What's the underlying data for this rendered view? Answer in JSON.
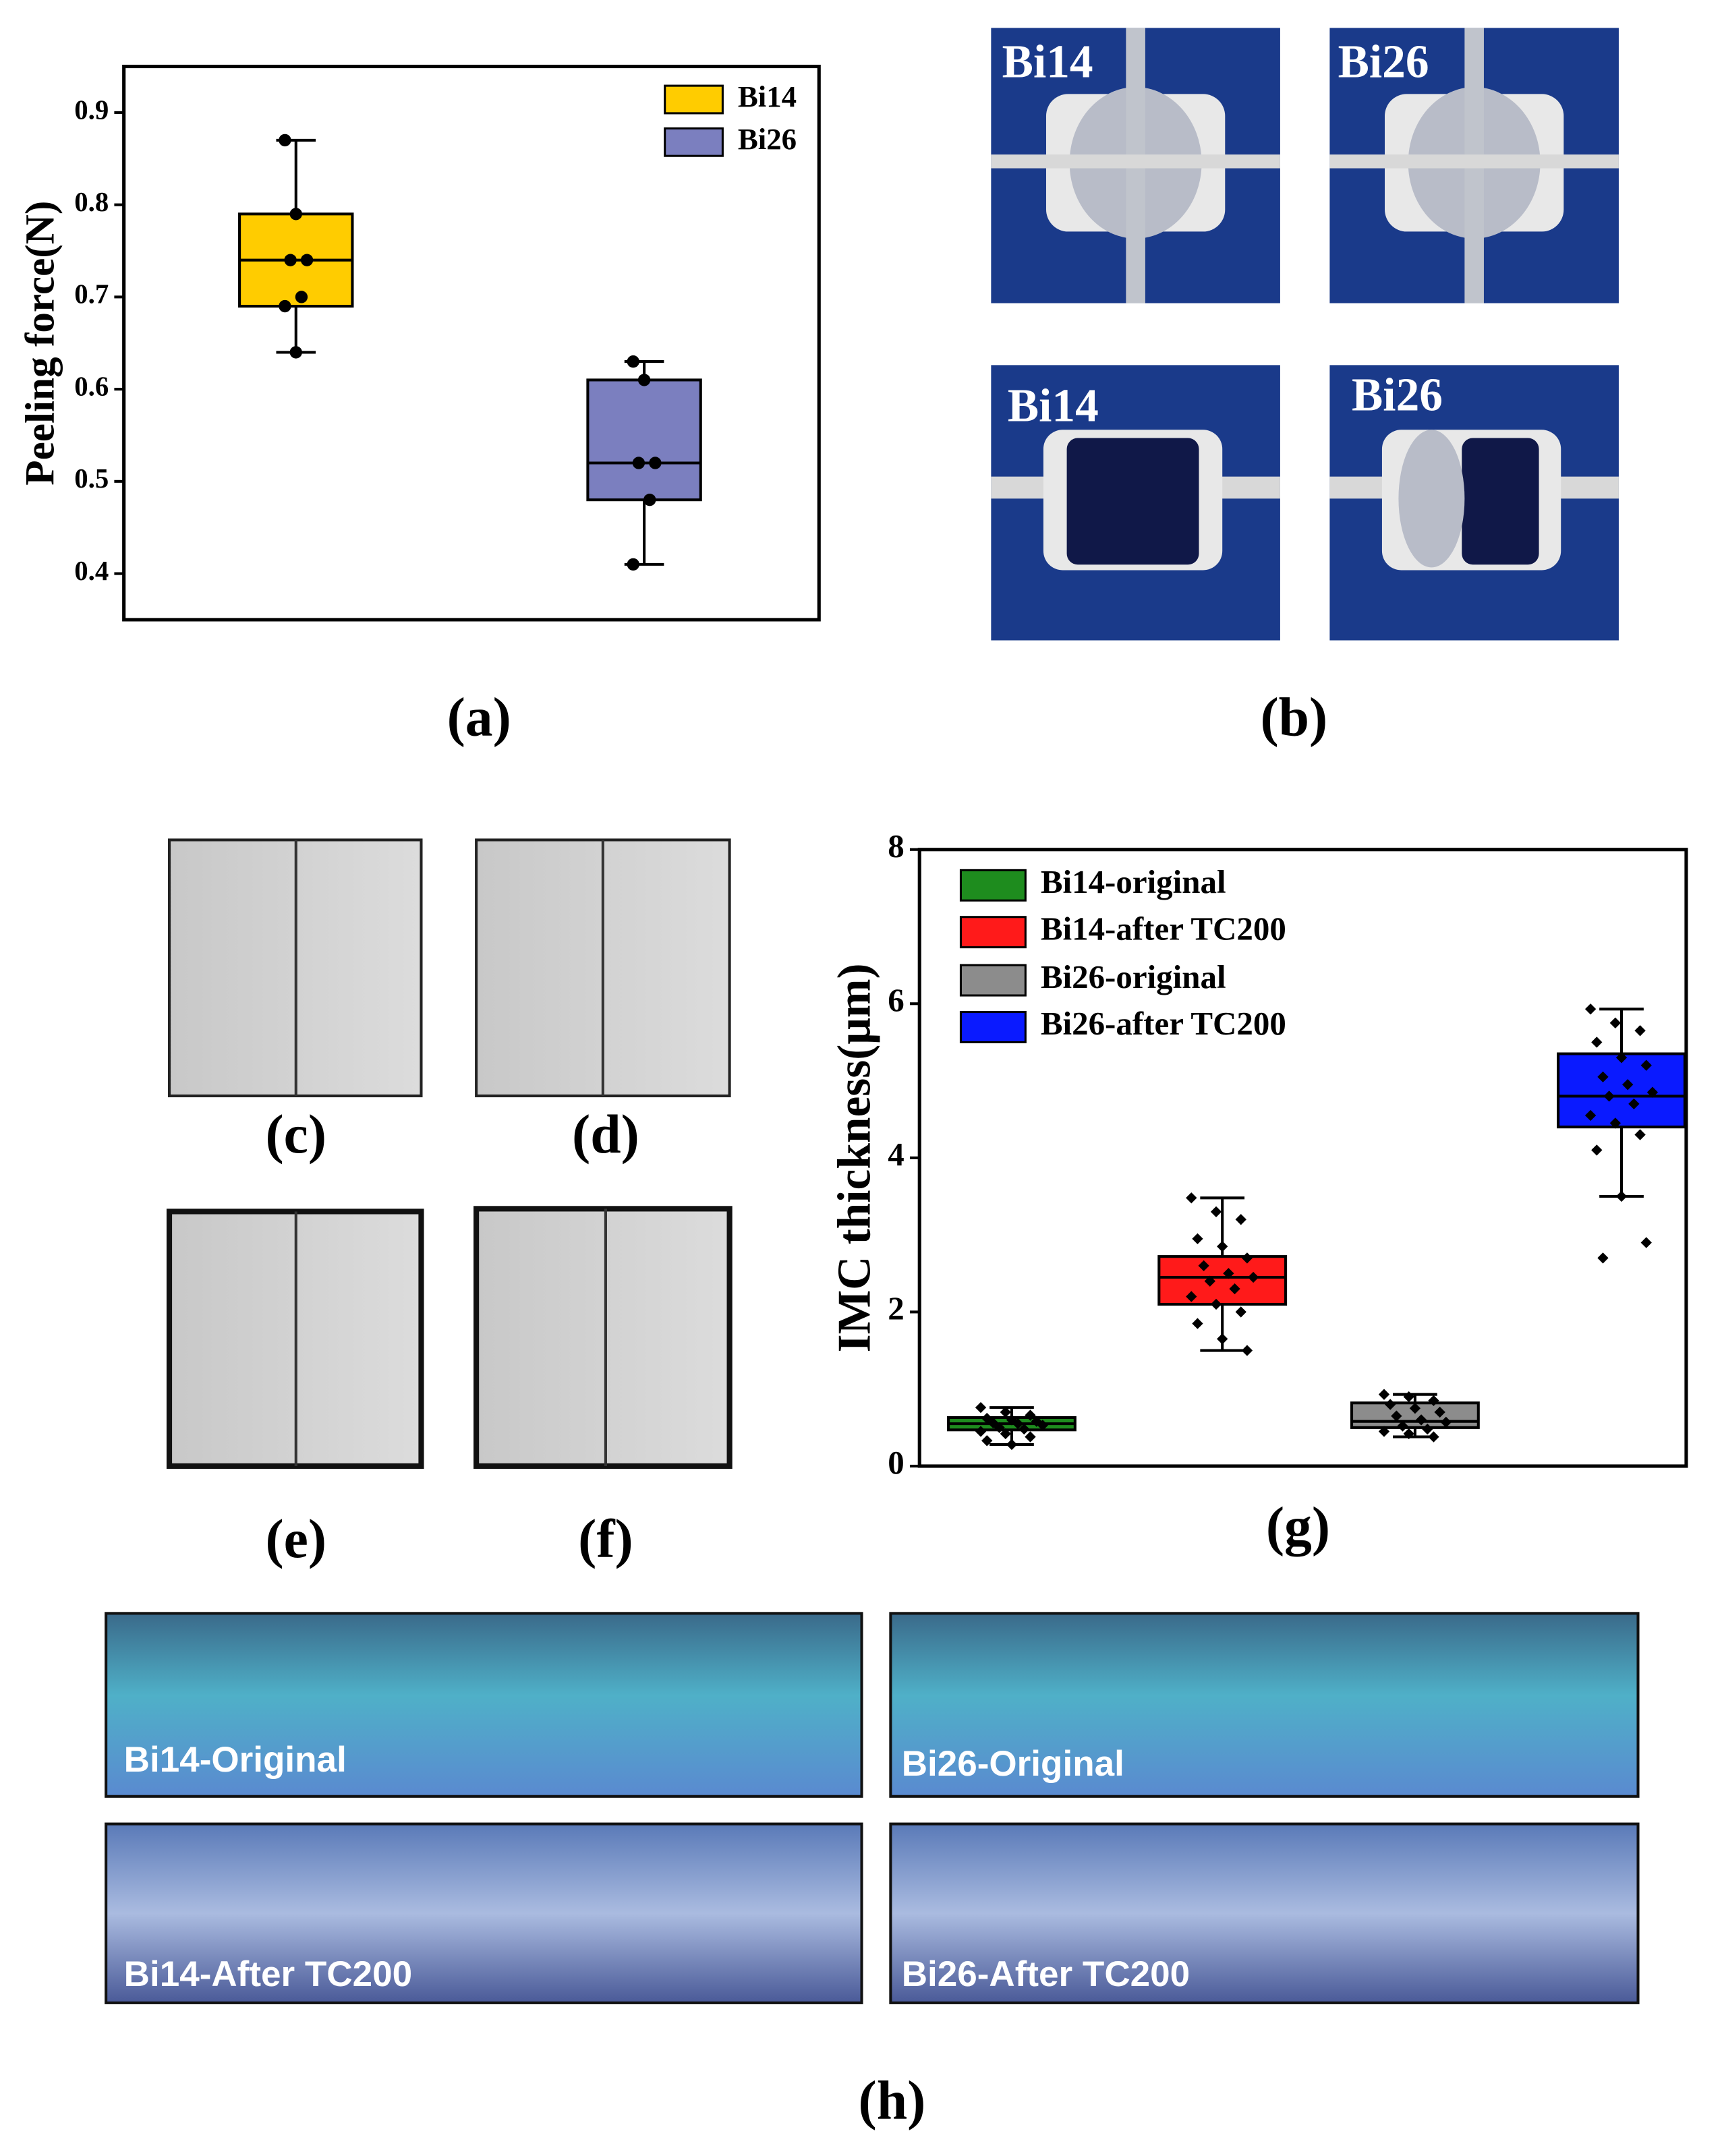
{
  "chart_data": [
    {
      "type": "box",
      "ylabel": "Peeling force(N)",
      "ylim": [
        0.35,
        0.95
      ],
      "yticks": [
        0.4,
        0.5,
        0.6,
        0.7,
        0.8,
        0.9
      ],
      "legend": "upper right",
      "series": [
        {
          "name": "Bi14",
          "color": "#ffcc00",
          "min": 0.64,
          "q1": 0.69,
          "median": 0.74,
          "q3": 0.79,
          "max": 0.87,
          "points": [
            0.87,
            0.79,
            0.74,
            0.74,
            0.7,
            0.69,
            0.64
          ]
        },
        {
          "name": "Bi26",
          "color": "#7b7fbf",
          "min": 0.41,
          "q1": 0.48,
          "median": 0.52,
          "q3": 0.61,
          "max": 0.63,
          "points": [
            0.63,
            0.61,
            0.52,
            0.52,
            0.48,
            0.41
          ]
        }
      ]
    },
    {
      "type": "box",
      "ylabel": "IMC thickness(μm)",
      "ylim": [
        0,
        8
      ],
      "yticks": [
        0,
        2,
        4,
        6,
        8
      ],
      "legend": "upper left",
      "series": [
        {
          "name": "Bi14-original",
          "color": "#1e8c1e",
          "min": 0.28,
          "q1": 0.47,
          "median": 0.55,
          "q3": 0.63,
          "max": 0.76,
          "points": [
            0.76,
            0.7,
            0.66,
            0.62,
            0.6,
            0.58,
            0.56,
            0.55,
            0.53,
            0.5,
            0.48,
            0.45,
            0.42,
            0.38,
            0.33,
            0.28
          ]
        },
        {
          "name": "Bi14-after TC200",
          "color": "#ff1a1a",
          "min": 1.5,
          "q1": 2.1,
          "median": 2.45,
          "q3": 2.72,
          "max": 3.48,
          "points": [
            3.48,
            3.3,
            3.2,
            2.95,
            2.85,
            2.7,
            2.6,
            2.5,
            2.45,
            2.4,
            2.3,
            2.2,
            2.1,
            2.0,
            1.85,
            1.65,
            1.5
          ]
        },
        {
          "name": "Bi26-original",
          "color": "#8c8c8c",
          "min": 0.38,
          "q1": 0.5,
          "median": 0.58,
          "q3": 0.82,
          "max": 0.93,
          "points": [
            0.93,
            0.9,
            0.85,
            0.8,
            0.75,
            0.7,
            0.65,
            0.6,
            0.57,
            0.52,
            0.48,
            0.45,
            0.42,
            0.38
          ]
        },
        {
          "name": "Bi26-after TC200",
          "color": "#0a1aff",
          "min": 3.5,
          "q1": 4.4,
          "median": 4.8,
          "q3": 5.35,
          "max": 5.93,
          "points": [
            5.93,
            5.75,
            5.65,
            5.5,
            5.3,
            5.2,
            5.05,
            4.95,
            4.85,
            4.8,
            4.7,
            4.55,
            4.45,
            4.3,
            4.1,
            3.5,
            2.9,
            2.7
          ]
        }
      ]
    }
  ],
  "panel_labels": [
    "(a)",
    "(b)",
    "(c)",
    "(d)",
    "(e)",
    "(f)",
    "(g)",
    "(h)"
  ],
  "image_labels": [
    "Bi14",
    "Bi26",
    "Bi14",
    "Bi26",
    "Bi14-Original",
    "Bi26-Original",
    "Bi14-After TC200",
    "Bi26-After TC200"
  ]
}
